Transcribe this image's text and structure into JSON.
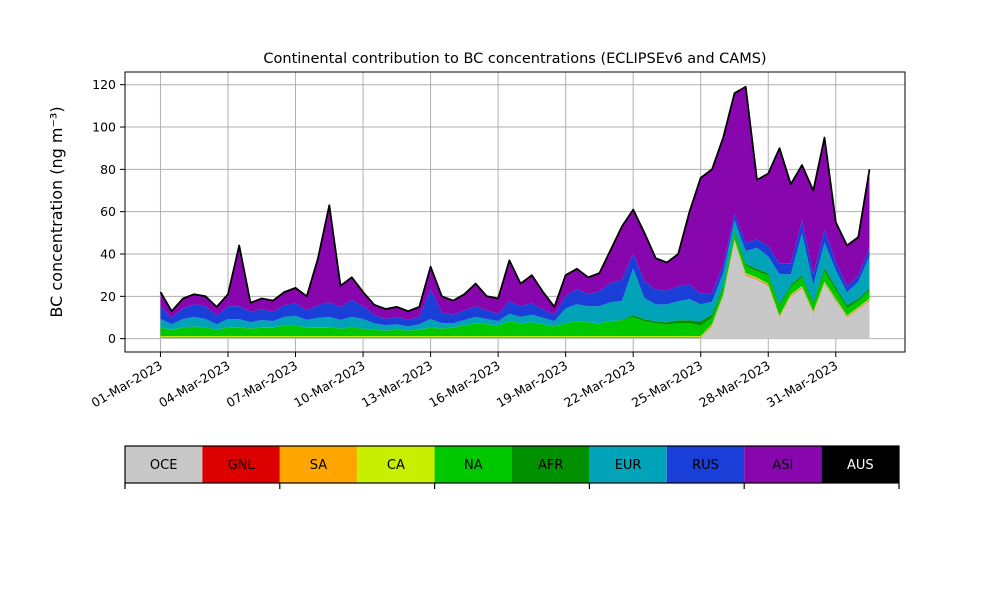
{
  "chart_data": {
    "type": "area",
    "variant": "stacked-area-time-series",
    "title": "Continental contribution to BC concentrations (ECLIPSEv6 and CAMS)",
    "ylabel": "BC concentration (ng m⁻³)",
    "xlabel": "",
    "x_tick_labels": [
      "01-Mar-2023",
      "04-Mar-2023",
      "07-Mar-2023",
      "10-Mar-2023",
      "13-Mar-2023",
      "16-Mar-2023",
      "19-Mar-2023",
      "22-Mar-2023",
      "25-Mar-2023",
      "28-Mar-2023",
      "31-Mar-2023"
    ],
    "x_tick_days": [
      0,
      3,
      6,
      9,
      12,
      15,
      18,
      21,
      24,
      27,
      30
    ],
    "y_ticks": [
      0,
      20,
      40,
      60,
      80,
      100,
      120
    ],
    "ylim": [
      -6.3,
      126
    ],
    "xlim": [
      -1.575,
      33.075
    ],
    "grid": true,
    "grid_color": "#b0b0b0",
    "total_line_color": "#000000",
    "t_start_days": 0,
    "t_step_days": 0.5,
    "units": "ng m-3",
    "stack_order": [
      "OCE",
      "GNL",
      "SA",
      "CA",
      "NA",
      "AFR",
      "EUR",
      "RUS",
      "ASI",
      "AUS"
    ],
    "series": {
      "OCE": {
        "color": "#c8c8c8",
        "values": [
          0.3,
          0.3,
          0.3,
          0.3,
          0.3,
          0.3,
          0.3,
          0.3,
          0.3,
          0.3,
          0.3,
          0.3,
          0.3,
          0.3,
          0.3,
          0.3,
          0.3,
          0.3,
          0.3,
          0.3,
          0.3,
          0.3,
          0.3,
          0.3,
          0.3,
          0.3,
          0.3,
          0.3,
          0.3,
          0.3,
          0.3,
          0.3,
          0.3,
          0.3,
          0.3,
          0.3,
          0.3,
          0.3,
          0.3,
          0.3,
          0.3,
          0.3,
          0.3,
          0.3,
          0.3,
          0.3,
          0.3,
          0.3,
          0.3,
          6,
          20,
          46,
          30,
          28,
          25,
          10,
          20,
          24,
          12,
          26,
          18,
          10,
          14,
          18
        ]
      },
      "GNL": {
        "color": "#dd0000",
        "values": [
          0.2,
          0.2,
          0.2,
          0.2,
          0.2,
          0.2,
          0.2,
          0.2,
          0.2,
          0.2,
          0.2,
          0.2,
          0.2,
          0.2,
          0.2,
          0.2,
          0.2,
          0.2,
          0.2,
          0.2,
          0.2,
          0.2,
          0.2,
          0.2,
          0.2,
          0.2,
          0.2,
          0.2,
          0.2,
          0.2,
          0.2,
          0.2,
          0.2,
          0.2,
          0.2,
          0.2,
          0.2,
          0.2,
          0.2,
          0.2,
          0.2,
          0.2,
          0.2,
          0.2,
          0.2,
          0.2,
          0.2,
          0.2,
          0.2,
          0.2,
          0.2,
          0.2,
          0.2,
          0.2,
          0.2,
          0.2,
          0.2,
          0.2,
          0.2,
          0.2,
          0.2,
          0.2,
          0.2,
          0.2
        ]
      },
      "SA": {
        "color": "#ffa500",
        "values": [
          0.3,
          0.3,
          0.3,
          0.3,
          0.3,
          0.3,
          0.3,
          0.3,
          0.3,
          0.3,
          0.3,
          0.3,
          0.3,
          0.3,
          0.3,
          0.3,
          0.3,
          0.3,
          0.3,
          0.3,
          0.3,
          0.3,
          0.3,
          0.3,
          0.3,
          0.3,
          0.3,
          0.3,
          0.3,
          0.3,
          0.3,
          0.3,
          0.3,
          0.3,
          0.3,
          0.3,
          0.3,
          0.3,
          0.3,
          0.3,
          0.3,
          0.3,
          0.3,
          0.3,
          0.3,
          0.3,
          0.3,
          0.3,
          0.3,
          0.3,
          0.3,
          0.3,
          0.3,
          0.3,
          0.3,
          0.3,
          0.3,
          0.3,
          0.3,
          0.3,
          0.3,
          0.3,
          0.3,
          0.3
        ]
      },
      "CA": {
        "color": "#c8ef00",
        "values": [
          0.4,
          0.4,
          0.4,
          0.4,
          0.4,
          0.4,
          0.4,
          0.4,
          0.4,
          0.4,
          0.4,
          0.4,
          0.4,
          0.4,
          0.4,
          0.4,
          0.4,
          0.4,
          0.4,
          0.4,
          0.4,
          0.4,
          0.4,
          0.4,
          0.4,
          0.4,
          0.4,
          0.4,
          0.4,
          0.4,
          0.4,
          0.4,
          0.4,
          0.4,
          0.4,
          0.4,
          0.4,
          0.4,
          0.4,
          0.4,
          0.4,
          0.4,
          0.4,
          0.4,
          0.4,
          0.4,
          0.4,
          0.4,
          0.4,
          0.4,
          0.4,
          0.4,
          0.4,
          0.4,
          0.4,
          0.4,
          0.4,
          0.4,
          0.4,
          0.4,
          0.4,
          0.4,
          0.4,
          0.4
        ]
      },
      "NA": {
        "color": "#00c800",
        "values": [
          4,
          3,
          4,
          4.5,
          4,
          3,
          4,
          4,
          3.5,
          4,
          4,
          5,
          5,
          4,
          4,
          4,
          3.5,
          4,
          3.5,
          3,
          2.5,
          3,
          2.5,
          3,
          4,
          3.5,
          4,
          5,
          6,
          5.5,
          5,
          7,
          6,
          6.5,
          5.5,
          4.5,
          6,
          7,
          6.5,
          6,
          7,
          7.5,
          9,
          7,
          6,
          5.5,
          6,
          6,
          5,
          3,
          3,
          3,
          3.5,
          3,
          4,
          4.5,
          3.5,
          4,
          3.5,
          5,
          4,
          3.5,
          3,
          4
        ]
      },
      "AFR": {
        "color": "#009000",
        "values": [
          0.1,
          0.1,
          0.1,
          0.1,
          0.1,
          0.1,
          0.1,
          0.1,
          0.1,
          0.1,
          0.1,
          0.1,
          0.1,
          0.1,
          0.1,
          0.1,
          0.1,
          0.1,
          0.1,
          0.1,
          0.1,
          0.1,
          0.1,
          0.1,
          0.1,
          0.1,
          0.1,
          0.1,
          0.1,
          0.1,
          0.1,
          0.1,
          0.1,
          0.1,
          0.1,
          0.1,
          0.1,
          0.1,
          0.1,
          0.1,
          0.1,
          0.1,
          1,
          1,
          1,
          1,
          1.5,
          1.5,
          2,
          1.5,
          1,
          1,
          1,
          1,
          1,
          1,
          1,
          1,
          1,
          1.5,
          1.5,
          1.5,
          1,
          1
        ]
      },
      "EUR": {
        "color": "#00a3b8",
        "values": [
          4,
          2.5,
          4,
          4.5,
          4,
          2.5,
          4,
          4,
          3,
          3.5,
          3,
          4,
          4.5,
          3.5,
          4.5,
          5,
          4,
          5,
          4.5,
          3,
          2.5,
          2.5,
          2,
          2.5,
          4,
          2.5,
          2,
          2.5,
          3,
          2.5,
          2,
          3.5,
          3,
          3.5,
          3,
          2.5,
          7,
          8,
          7.5,
          8,
          9,
          9,
          22,
          10,
          8,
          8.5,
          9,
          10,
          8,
          6,
          6,
          5,
          6,
          10,
          8,
          14,
          5,
          20,
          8,
          12,
          8,
          6,
          8,
          15
        ]
      },
      "RUS": {
        "color": "#1a3fd9",
        "values": [
          6,
          3,
          5,
          6,
          6,
          4,
          6,
          6,
          5,
          5,
          4.5,
          5.5,
          6,
          4.5,
          6,
          7,
          6,
          8,
          6,
          4,
          3,
          3.5,
          3,
          3.5,
          14,
          5,
          4,
          4.5,
          5,
          4,
          3.5,
          6,
          5,
          5.5,
          4,
          3,
          6,
          7,
          6,
          7,
          9,
          10,
          7,
          8,
          7,
          6.5,
          7,
          7,
          5,
          4,
          4,
          3,
          4,
          4,
          5,
          5,
          5,
          6,
          5,
          6,
          4,
          3,
          3,
          4
        ]
      },
      "ASI": {
        "color": "#8806ae",
        "values": [
          6.7,
          3.2,
          4.7,
          4.7,
          4.7,
          4.2,
          5.7,
          28.7,
          4.2,
          5.2,
          5.2,
          6.2,
          7.2,
          6.7,
          22.2,
          45.7,
          10.2,
          10.7,
          6.7,
          4.7,
          4.7,
          4.7,
          4.2,
          4.7,
          10.7,
          7.7,
          6.7,
          7.7,
          10.7,
          6.7,
          7.2,
          19.2,
          10.7,
          13.2,
          8.2,
          3.7,
          9.7,
          9.7,
          7.7,
          8.7,
          15.7,
          25.2,
          20.8,
          22.8,
          14.8,
          13.3,
          15.3,
          34.3,
          54.8,
          58.6,
          60.1,
          57.1,
          73.6,
          28.1,
          34.1,
          54.6,
          37.6,
          26.1,
          39.6,
          43.6,
          18.6,
          19.1,
          18.1,
          37.1
        ]
      },
      "AUS": {
        "color": "#000000",
        "values": [
          0,
          0,
          0,
          0,
          0,
          0,
          0,
          0,
          0,
          0,
          0,
          0,
          0,
          0,
          0,
          0,
          0,
          0,
          0,
          0,
          0,
          0,
          0,
          0,
          0,
          0,
          0,
          0,
          0,
          0,
          0,
          0,
          0,
          0,
          0,
          0,
          0,
          0,
          0,
          0,
          0,
          0,
          0,
          0,
          0,
          0,
          0,
          0,
          0,
          0,
          0,
          0,
          0,
          0,
          0,
          0,
          0,
          0,
          0,
          0,
          0,
          0,
          0,
          0
        ]
      }
    }
  },
  "legend": {
    "items": [
      {
        "label": "OCE",
        "color": "#c8c8c8",
        "text_color": "#000000"
      },
      {
        "label": "GNL",
        "color": "#dd0000",
        "text_color": "#000000"
      },
      {
        "label": "SA",
        "color": "#ffa500",
        "text_color": "#000000"
      },
      {
        "label": "CA",
        "color": "#c8ef00",
        "text_color": "#000000"
      },
      {
        "label": "NA",
        "color": "#00c800",
        "text_color": "#000000"
      },
      {
        "label": "AFR",
        "color": "#009000",
        "text_color": "#000000"
      },
      {
        "label": "EUR",
        "color": "#00a3b8",
        "text_color": "#000000"
      },
      {
        "label": "RUS",
        "color": "#1a3fd9",
        "text_color": "#000000"
      },
      {
        "label": "ASI",
        "color": "#8806ae",
        "text_color": "#000000"
      },
      {
        "label": "AUS",
        "color": "#000000",
        "text_color": "#ffffff"
      }
    ]
  }
}
